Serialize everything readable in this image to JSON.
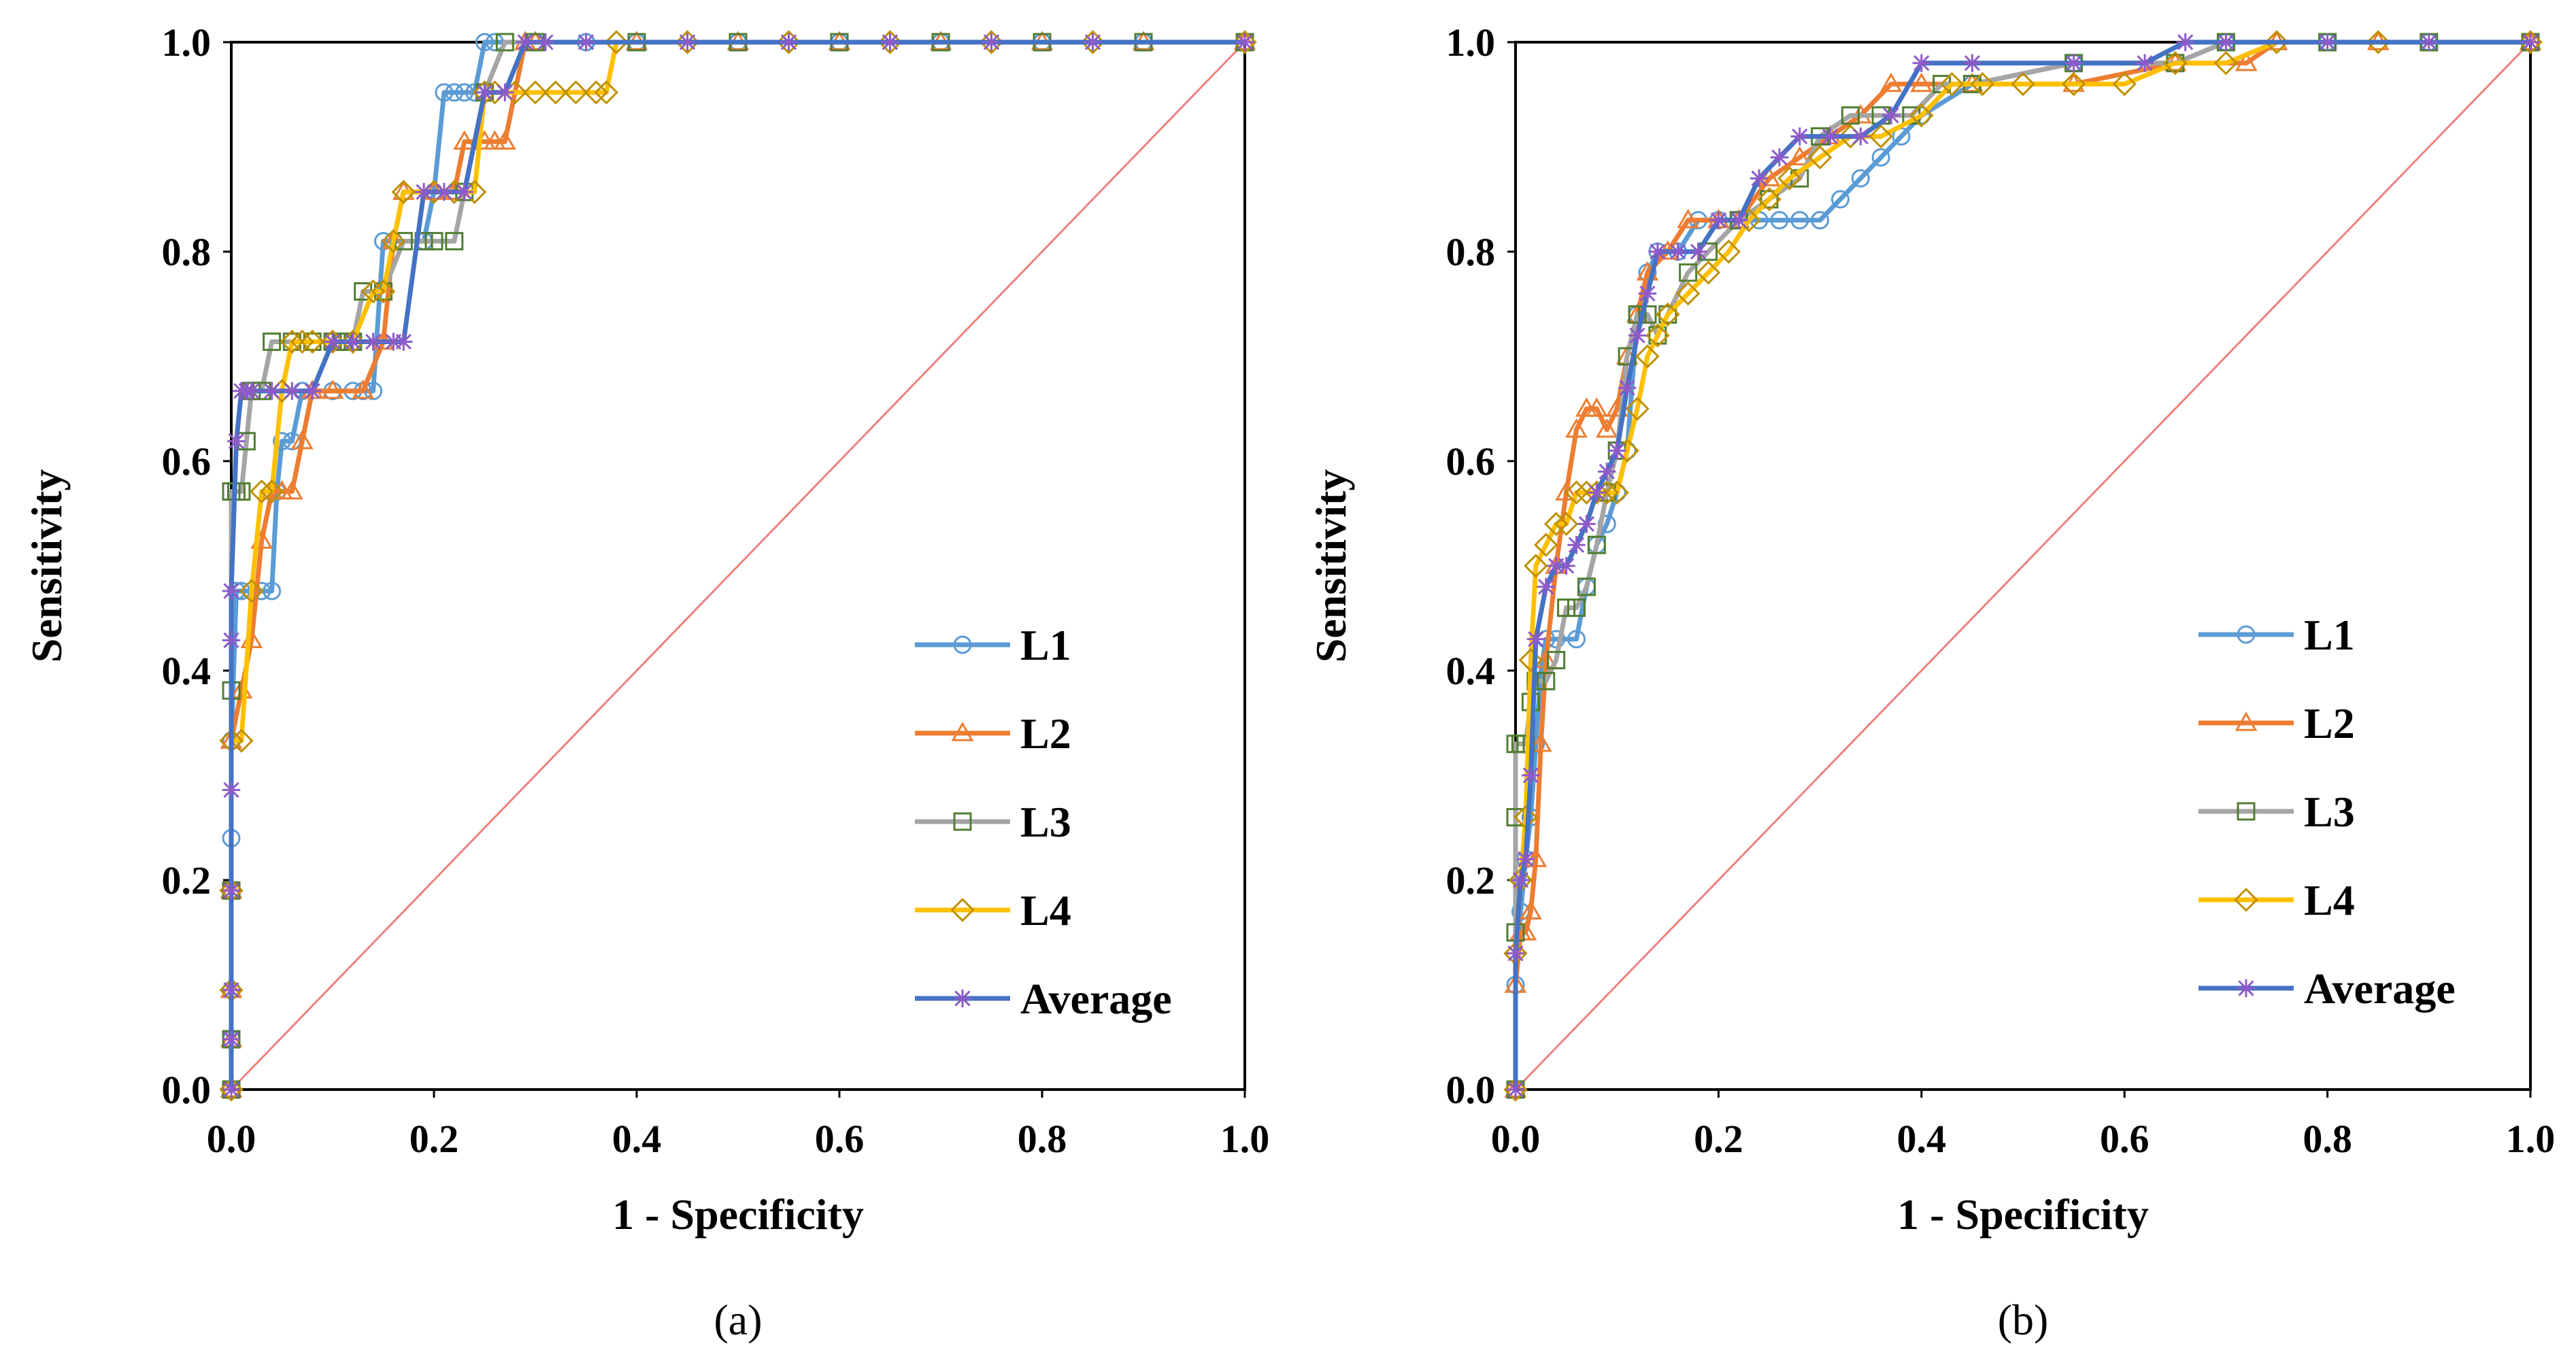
{
  "colors": {
    "L1": "#5B9BD5",
    "L2": "#ED7D31",
    "L3": "#A5A5A5",
    "L4": "#FFC000",
    "Average": "#4472C4",
    "average_marker": "#8E5AC8",
    "L3_marker": "#507E32",
    "L4_marker": "#BF9000",
    "diagonal": "#F08080"
  },
  "chart_data": [
    {
      "type": "line",
      "caption": "(a)",
      "xlabel": "1 - Specificity",
      "ylabel": "Sensitivity",
      "xlim": [
        0,
        1
      ],
      "ylim": [
        0,
        1
      ],
      "xticks": [
        0.0,
        0.2,
        0.4,
        0.6,
        0.8,
        1.0
      ],
      "yticks": [
        0.0,
        0.2,
        0.4,
        0.6,
        0.8,
        1.0
      ],
      "xtick_labels": [
        "0.0",
        "0.2",
        "0.4",
        "0.6",
        "0.8",
        "1.0"
      ],
      "ytick_labels": [
        "0.0",
        "0.2",
        "0.4",
        "0.6",
        "0.8",
        "1.0"
      ],
      "legend_position": "lower-right",
      "reference_line": {
        "x": [
          0,
          1
        ],
        "y": [
          0,
          1
        ]
      },
      "series": [
        {
          "name": "L1",
          "marker": "circle",
          "x": [
            0,
            0,
            0,
            0,
            0,
            0,
            0.005,
            0.01,
            0.02,
            0.03,
            0.04,
            0.045,
            0.05,
            0.06,
            0.07,
            0.1,
            0.12,
            0.13,
            0.14,
            0.15,
            0.16,
            0.19,
            0.2,
            0.21,
            0.22,
            0.23,
            0.24,
            0.25,
            0.26,
            0.3,
            0.35,
            0.4,
            0.5,
            0.6,
            0.7,
            0.8,
            0.9,
            1.0
          ],
          "y": [
            0,
            0.048,
            0.095,
            0.19,
            0.24,
            0.333,
            0.476,
            0.476,
            0.476,
            0.476,
            0.476,
            0.571,
            0.619,
            0.619,
            0.667,
            0.667,
            0.667,
            0.667,
            0.667,
            0.81,
            0.81,
            0.81,
            0.857,
            0.952,
            0.952,
            0.952,
            0.952,
            1.0,
            1.0,
            1.0,
            1.0,
            1.0,
            1.0,
            1.0,
            1.0,
            1.0,
            1.0,
            1.0
          ]
        },
        {
          "name": "L2",
          "marker": "triangle",
          "x": [
            0,
            0,
            0,
            0,
            0,
            0.01,
            0.02,
            0.03,
            0.04,
            0.05,
            0.06,
            0.07,
            0.08,
            0.1,
            0.13,
            0.15,
            0.16,
            0.17,
            0.2,
            0.22,
            0.23,
            0.25,
            0.26,
            0.27,
            0.29,
            0.3,
            0.4,
            0.5,
            0.6,
            0.7,
            0.8,
            0.9,
            1.0
          ],
          "y": [
            0,
            0.048,
            0.095,
            0.19,
            0.333,
            0.381,
            0.429,
            0.524,
            0.571,
            0.571,
            0.571,
            0.619,
            0.667,
            0.667,
            0.667,
            0.714,
            0.81,
            0.857,
            0.857,
            0.857,
            0.905,
            0.905,
            0.905,
            0.905,
            1.0,
            1.0,
            1.0,
            1.0,
            1.0,
            1.0,
            1.0,
            1.0,
            1.0
          ]
        },
        {
          "name": "L3",
          "marker": "square",
          "x": [
            0,
            0,
            0,
            0,
            0,
            0.005,
            0.01,
            0.015,
            0.02,
            0.03,
            0.04,
            0.06,
            0.08,
            0.1,
            0.11,
            0.12,
            0.13,
            0.15,
            0.17,
            0.19,
            0.2,
            0.22,
            0.23,
            0.25,
            0.27,
            0.3,
            0.4,
            0.5,
            0.6,
            0.7,
            0.8,
            0.9,
            1.0
          ],
          "y": [
            0,
            0.048,
            0.19,
            0.381,
            0.571,
            0.571,
            0.571,
            0.619,
            0.667,
            0.667,
            0.714,
            0.714,
            0.714,
            0.714,
            0.714,
            0.714,
            0.762,
            0.762,
            0.81,
            0.81,
            0.81,
            0.81,
            0.857,
            0.952,
            1.0,
            1.0,
            1.0,
            1.0,
            1.0,
            1.0,
            1.0,
            1.0,
            1.0
          ]
        },
        {
          "name": "L4",
          "marker": "diamond",
          "x": [
            0,
            0,
            0,
            0,
            0.01,
            0.02,
            0.03,
            0.04,
            0.05,
            0.06,
            0.07,
            0.08,
            0.1,
            0.12,
            0.14,
            0.15,
            0.16,
            0.17,
            0.2,
            0.22,
            0.24,
            0.25,
            0.26,
            0.28,
            0.3,
            0.32,
            0.34,
            0.36,
            0.37,
            0.38,
            0.45,
            0.55,
            0.65,
            0.75,
            0.85,
            1.0
          ],
          "y": [
            0,
            0.095,
            0.19,
            0.333,
            0.333,
            0.476,
            0.571,
            0.571,
            0.667,
            0.714,
            0.714,
            0.714,
            0.714,
            0.714,
            0.762,
            0.762,
            0.81,
            0.857,
            0.857,
            0.857,
            0.857,
            0.952,
            0.952,
            0.952,
            0.952,
            0.952,
            0.952,
            0.952,
            0.952,
            1.0,
            1.0,
            1.0,
            1.0,
            1.0,
            1.0,
            1.0
          ]
        },
        {
          "name": "Average",
          "marker": "asterisk",
          "x": [
            0,
            0,
            0,
            0,
            0,
            0,
            0,
            0.005,
            0.01,
            0.015,
            0.02,
            0.04,
            0.06,
            0.08,
            0.1,
            0.12,
            0.14,
            0.16,
            0.17,
            0.19,
            0.21,
            0.23,
            0.25,
            0.27,
            0.29,
            0.31,
            0.35,
            0.45,
            0.55,
            0.65,
            0.75,
            0.85,
            1.0
          ],
          "y": [
            0,
            0.048,
            0.095,
            0.19,
            0.286,
            0.429,
            0.476,
            0.619,
            0.667,
            0.667,
            0.667,
            0.667,
            0.667,
            0.667,
            0.714,
            0.714,
            0.714,
            0.714,
            0.714,
            0.857,
            0.857,
            0.857,
            0.952,
            0.952,
            1.0,
            1.0,
            1.0,
            1.0,
            1.0,
            1.0,
            1.0,
            1.0,
            1.0
          ]
        }
      ]
    },
    {
      "type": "line",
      "caption": "(b)",
      "xlabel": "1 - Specificity",
      "ylabel": "Sensitivity",
      "xlim": [
        0,
        1
      ],
      "ylim": [
        0,
        1
      ],
      "xticks": [
        0.0,
        0.2,
        0.4,
        0.6,
        0.8,
        1.0
      ],
      "yticks": [
        0.0,
        0.2,
        0.4,
        0.6,
        0.8,
        1.0
      ],
      "xtick_labels": [
        "0.0",
        "0.2",
        "0.4",
        "0.6",
        "0.8",
        "1.0"
      ],
      "ytick_labels": [
        "0.0",
        "0.2",
        "0.4",
        "0.6",
        "0.8",
        "1.0"
      ],
      "legend_position": "lower-right",
      "reference_line": {
        "x": [
          0,
          1
        ],
        "y": [
          0,
          1
        ]
      },
      "series": [
        {
          "name": "L1",
          "marker": "circle",
          "x": [
            0,
            0,
            0.005,
            0.01,
            0.015,
            0.02,
            0.025,
            0.03,
            0.04,
            0.06,
            0.07,
            0.08,
            0.09,
            0.1,
            0.11,
            0.12,
            0.13,
            0.14,
            0.16,
            0.18,
            0.2,
            0.22,
            0.24,
            0.26,
            0.28,
            0.3,
            0.32,
            0.34,
            0.36,
            0.38,
            0.4,
            0.45,
            0.55,
            0.65,
            0.7,
            0.8,
            0.9,
            1.0
          ],
          "y": [
            0,
            0.1,
            0.17,
            0.22,
            0.26,
            0.33,
            0.4,
            0.43,
            0.43,
            0.43,
            0.48,
            0.52,
            0.54,
            0.57,
            0.61,
            0.74,
            0.78,
            0.8,
            0.8,
            0.83,
            0.83,
            0.83,
            0.83,
            0.83,
            0.83,
            0.83,
            0.85,
            0.87,
            0.89,
            0.91,
            0.93,
            0.96,
            0.98,
            0.98,
            1.0,
            1.0,
            1.0,
            1.0
          ]
        },
        {
          "name": "L2",
          "marker": "triangle",
          "x": [
            0,
            0,
            0.005,
            0.01,
            0.015,
            0.02,
            0.025,
            0.03,
            0.04,
            0.05,
            0.06,
            0.07,
            0.08,
            0.09,
            0.1,
            0.11,
            0.12,
            0.13,
            0.15,
            0.17,
            0.2,
            0.22,
            0.25,
            0.28,
            0.31,
            0.34,
            0.37,
            0.4,
            0.45,
            0.55,
            0.65,
            0.72,
            0.75,
            0.85,
            1.0
          ],
          "y": [
            0,
            0.1,
            0.15,
            0.15,
            0.17,
            0.22,
            0.33,
            0.41,
            0.5,
            0.57,
            0.63,
            0.65,
            0.65,
            0.63,
            0.65,
            0.7,
            0.74,
            0.78,
            0.8,
            0.83,
            0.83,
            0.83,
            0.87,
            0.89,
            0.91,
            0.93,
            0.96,
            0.96,
            0.96,
            0.96,
            0.98,
            0.98,
            1.0,
            1.0,
            1.0
          ]
        },
        {
          "name": "L3",
          "marker": "square",
          "x": [
            0,
            0,
            0,
            0,
            0.005,
            0.01,
            0.015,
            0.02,
            0.03,
            0.04,
            0.05,
            0.06,
            0.07,
            0.08,
            0.09,
            0.1,
            0.11,
            0.12,
            0.13,
            0.14,
            0.15,
            0.17,
            0.19,
            0.22,
            0.25,
            0.28,
            0.3,
            0.33,
            0.36,
            0.39,
            0.42,
            0.45,
            0.55,
            0.65,
            0.7,
            0.8,
            0.9,
            1.0
          ],
          "y": [
            0,
            0.15,
            0.26,
            0.33,
            0.33,
            0.33,
            0.37,
            0.39,
            0.39,
            0.41,
            0.46,
            0.46,
            0.48,
            0.52,
            0.57,
            0.61,
            0.7,
            0.74,
            0.74,
            0.72,
            0.74,
            0.78,
            0.8,
            0.83,
            0.85,
            0.87,
            0.91,
            0.93,
            0.93,
            0.93,
            0.96,
            0.96,
            0.98,
            0.98,
            1.0,
            1.0,
            1.0,
            1.0
          ]
        },
        {
          "name": "L4",
          "marker": "diamond",
          "x": [
            0,
            0,
            0.005,
            0.01,
            0.015,
            0.02,
            0.03,
            0.04,
            0.05,
            0.06,
            0.07,
            0.08,
            0.09,
            0.1,
            0.11,
            0.12,
            0.13,
            0.14,
            0.15,
            0.17,
            0.19,
            0.21,
            0.23,
            0.25,
            0.27,
            0.3,
            0.33,
            0.36,
            0.4,
            0.43,
            0.46,
            0.5,
            0.55,
            0.6,
            0.65,
            0.7,
            0.75,
            0.85,
            1.0
          ],
          "y": [
            0,
            0.13,
            0.2,
            0.26,
            0.41,
            0.5,
            0.52,
            0.54,
            0.54,
            0.57,
            0.57,
            0.57,
            0.57,
            0.57,
            0.61,
            0.65,
            0.7,
            0.72,
            0.74,
            0.76,
            0.78,
            0.8,
            0.83,
            0.85,
            0.87,
            0.89,
            0.91,
            0.91,
            0.93,
            0.96,
            0.96,
            0.96,
            0.96,
            0.96,
            0.98,
            0.98,
            1.0,
            1.0,
            1.0
          ]
        },
        {
          "name": "Average",
          "marker": "asterisk",
          "x": [
            0,
            0,
            0.005,
            0.01,
            0.015,
            0.02,
            0.03,
            0.04,
            0.05,
            0.06,
            0.07,
            0.08,
            0.09,
            0.1,
            0.11,
            0.12,
            0.13,
            0.14,
            0.16,
            0.18,
            0.2,
            0.22,
            0.24,
            0.26,
            0.28,
            0.31,
            0.34,
            0.37,
            0.4,
            0.45,
            0.55,
            0.62,
            0.66,
            0.7,
            0.8,
            0.9,
            1.0
          ],
          "y": [
            0,
            0.13,
            0.2,
            0.22,
            0.3,
            0.43,
            0.48,
            0.5,
            0.5,
            0.52,
            0.54,
            0.57,
            0.59,
            0.61,
            0.67,
            0.72,
            0.76,
            0.8,
            0.8,
            0.8,
            0.83,
            0.83,
            0.87,
            0.89,
            0.91,
            0.91,
            0.91,
            0.93,
            0.98,
            0.98,
            0.98,
            0.98,
            1.0,
            1.0,
            1.0,
            1.0,
            1.0
          ]
        }
      ]
    }
  ]
}
